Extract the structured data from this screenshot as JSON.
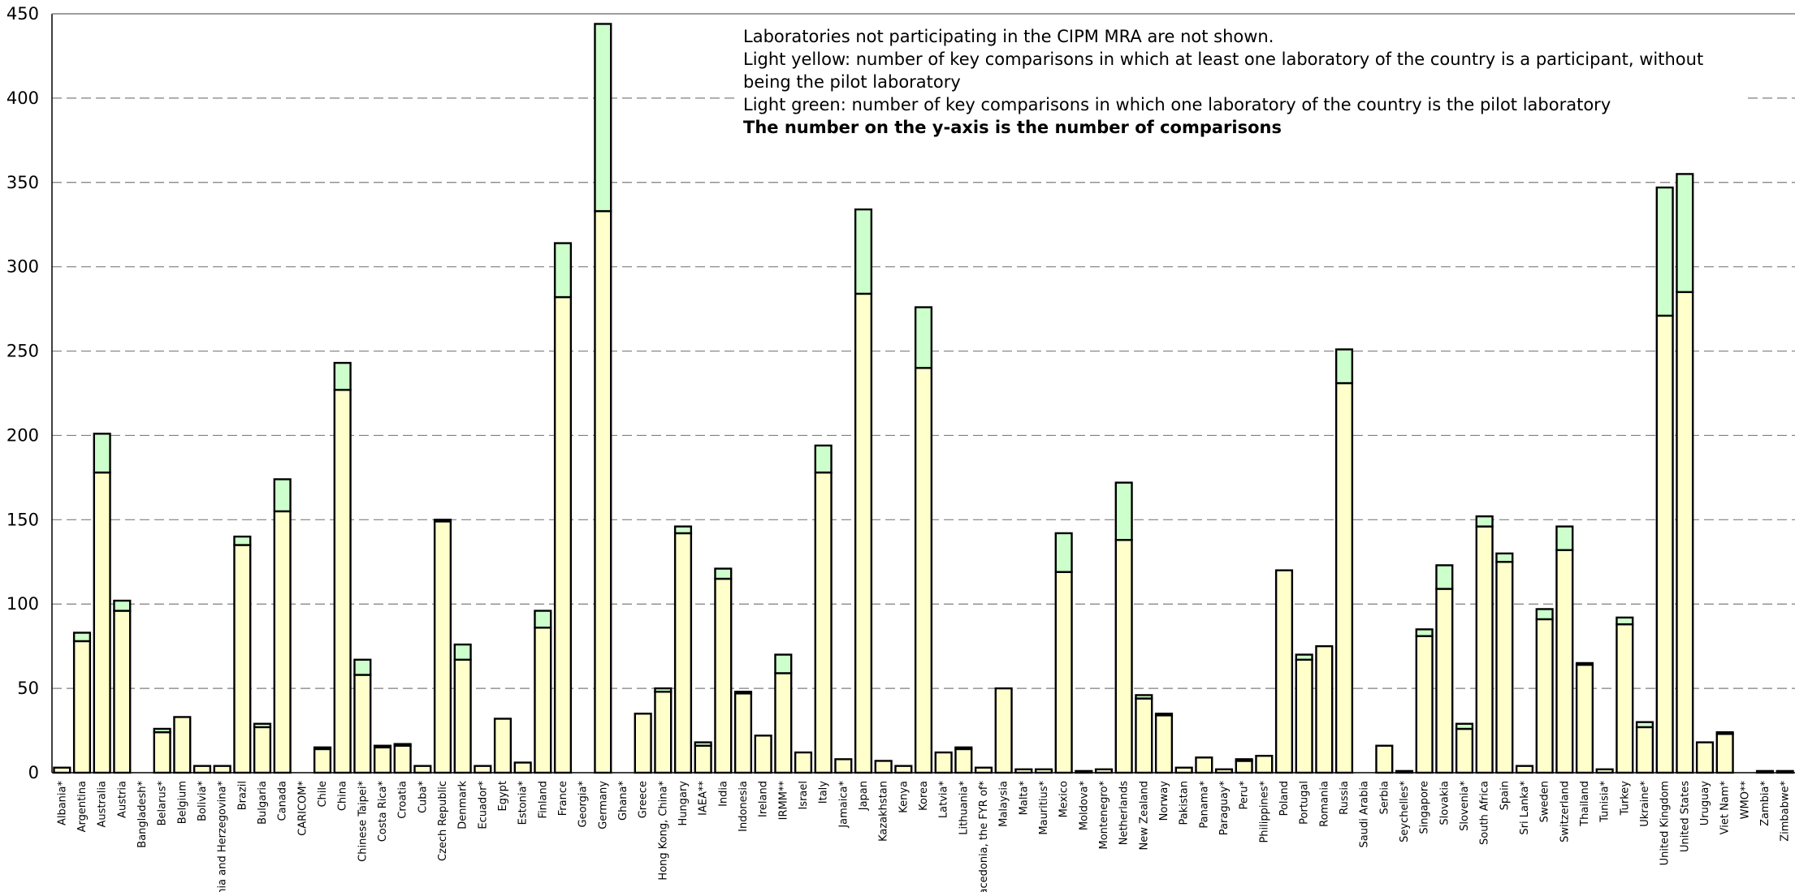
{
  "chart_data": {
    "type": "bar",
    "stacked": true,
    "ylim": [
      0,
      450
    ],
    "yticks": [
      0,
      50,
      100,
      150,
      200,
      250,
      300,
      350,
      400,
      450
    ],
    "grid": true,
    "colors": {
      "participant": "#ffffcc",
      "pilot": "#ccffcc",
      "outline": "#000000"
    },
    "notes": [
      "Laboratories not participating in the CIPM MRA are not shown.",
      "Light yellow: number of key comparisons in which at least one laboratory of the country is a participant, without",
      "being the pilot laboratory",
      "Light green: number of key comparisons in which one laboratory of the country is the pilot laboratory",
      "The number on the y-axis is the number of comparisons"
    ],
    "categories": [
      "Albania*",
      "Argentina",
      "Australia",
      "Austria",
      "Bangladesh*",
      "Belarus*",
      "Belgium",
      "Bolivia*",
      "Bosnia and Herzegovina*",
      "Brazil",
      "Bulgaria",
      "Canada",
      "CARICOM*",
      "Chile",
      "China",
      "Chinese Taipei*",
      "Costa Rica*",
      "Croatia",
      "Cuba*",
      "Czech Republic",
      "Denmark",
      "Ecuador*",
      "Egypt",
      "Estonia*",
      "Finland",
      "France",
      "Georgia*",
      "Germany",
      "Ghana*",
      "Greece",
      "Hong Kong, China*",
      "Hungary",
      "IAEA**",
      "India",
      "Indonesia",
      "Ireland",
      "IRMM**",
      "Israel",
      "Italy",
      "Jamaica*",
      "Japan",
      "Kazakhstan",
      "Kenya",
      "Korea",
      "Latvia*",
      "Lithuania*",
      "Macedonia, the FYR of*",
      "Malaysia",
      "Malta*",
      "Mauritius*",
      "Mexico",
      "Moldova*",
      "Montenegro*",
      "Netherlands",
      "New Zealand",
      "Norway",
      "Pakistan",
      "Panama*",
      "Paraguay*",
      "Peru*",
      "Philippines*",
      "Poland",
      "Portugal",
      "Romania",
      "Russia",
      "Saudi Arabia",
      "Serbia",
      "Seychelles*",
      "Singapore",
      "Slovakia",
      "Slovenia*",
      "South Africa",
      "Spain",
      "Sri Lanka*",
      "Sweden",
      "Switzerland",
      "Thailand",
      "Tunisia*",
      "Turkey",
      "Ukraine*",
      "United Kingdom",
      "United States",
      "Uruguay",
      "Viet Nam*",
      "WMO**",
      "Zambia*",
      "Zimbabwe*"
    ],
    "series": [
      {
        "values": [
          3,
          78,
          178,
          96,
          0,
          24,
          33,
          4,
          4,
          135,
          27,
          155,
          0,
          14,
          227,
          58,
          15,
          16,
          4,
          149,
          67,
          4,
          32,
          6,
          86,
          282,
          0,
          333,
          0,
          35,
          48,
          142,
          16,
          115,
          47,
          22,
          59,
          12,
          178,
          8,
          284,
          7,
          4,
          240,
          12,
          14,
          3,
          50,
          2,
          2,
          119,
          1,
          2,
          138,
          44,
          34,
          3,
          9,
          2,
          7,
          10,
          120,
          67,
          75,
          231,
          0,
          16,
          1,
          81,
          109,
          26,
          146,
          125,
          4,
          91,
          132,
          64,
          2,
          88,
          27,
          271,
          285,
          18,
          23,
          0,
          1,
          1
        ]
      },
      {
        "values": [
          0,
          5,
          23,
          6,
          0,
          2,
          0,
          0,
          0,
          5,
          2,
          19,
          0,
          1,
          16,
          9,
          1,
          1,
          0,
          1,
          9,
          0,
          0,
          0,
          10,
          32,
          0,
          111,
          0,
          0,
          2,
          4,
          2,
          6,
          1,
          0,
          11,
          0,
          16,
          0,
          50,
          0,
          0,
          36,
          0,
          1,
          0,
          0,
          0,
          0,
          23,
          0,
          0,
          34,
          2,
          1,
          0,
          0,
          0,
          1,
          0,
          0,
          3,
          0,
          20,
          0,
          0,
          0,
          4,
          14,
          3,
          6,
          5,
          0,
          6,
          14,
          1,
          0,
          4,
          3,
          76,
          70,
          0,
          1,
          0,
          0,
          0
        ]
      }
    ]
  }
}
